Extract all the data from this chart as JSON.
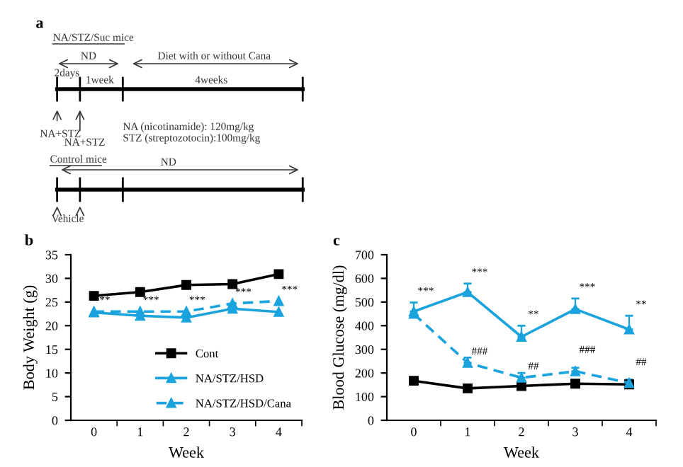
{
  "chart_data": [
    {
      "type": "other",
      "title": "a",
      "annotations": [
        "NA/STZ/Suc mice",
        "ND",
        "Diet with or without Cana",
        "2days",
        "1week",
        "4weeks",
        "NA+STZ",
        "NA+STZ",
        "NA (nicotinamide): 120mg/kg",
        "STZ (streptozotocin):100mg/kg",
        "Control mice",
        "ND",
        "Vehicle"
      ]
    },
    {
      "type": "line",
      "title": "b",
      "xlabel": "Week",
      "ylabel": "Body Weight (g)",
      "categories": [
        "0",
        "1",
        "2",
        "3",
        "4"
      ],
      "series": [
        {
          "name": "Cont",
          "color": "#000000",
          "marker": "square",
          "line_style": "solid",
          "values": [
            26.3,
            27.1,
            28.6,
            28.8,
            30.9
          ]
        },
        {
          "name": "NA/STZ/HSD",
          "color": "#1aa3dc",
          "marker": "triangle",
          "line_style": "solid",
          "values": [
            22.8,
            22.1,
            21.7,
            23.6,
            22.9
          ]
        },
        {
          "name": "NA/STZ/HSD/Cana",
          "color": "#1aa3dc",
          "marker": "triangle",
          "line_style": "dashed",
          "values": [
            23.0,
            23.0,
            23.0,
            24.7,
            25.2
          ]
        }
      ],
      "ylim": [
        0,
        35
      ],
      "yticks": [
        0,
        5,
        10,
        15,
        20,
        25,
        30,
        35
      ],
      "grid": false,
      "legend": "bottom right",
      "annotations": [
        {
          "text": "**",
          "x": "0",
          "y": 23.0
        },
        {
          "text": "***",
          "x": "1",
          "y": 23.0
        },
        {
          "text": "***",
          "x": "2",
          "y": 23.0
        },
        {
          "text": "***",
          "x": "3",
          "y": 24.7
        },
        {
          "text": "***",
          "x": "4",
          "y": 25.2
        }
      ]
    },
    {
      "type": "line",
      "title": "c",
      "xlabel": "Week",
      "ylabel": "Blood Glucose (mg/dl)",
      "categories": [
        "0",
        "1",
        "2",
        "3",
        "4"
      ],
      "series": [
        {
          "color": "#000000",
          "marker": "square",
          "line_style": "solid",
          "values": [
            167,
            135,
            145,
            155,
            152
          ]
        },
        {
          "color": "#1aa3dc",
          "marker": "triangle",
          "line_style": "solid",
          "values": [
            460,
            542,
            353,
            470,
            384
          ],
          "errors": [
            [
              460,
              498
            ],
            [
              542,
              578
            ],
            [
              353,
              400
            ],
            [
              470,
              515
            ],
            [
              384,
              442
            ]
          ]
        },
        {
          "color": "#1aa3dc",
          "marker": "triangle",
          "line_style": "dashed",
          "values": [
            450,
            243,
            180,
            207,
            158
          ],
          "errors": [
            null,
            [
              243,
              265
            ],
            [
              180,
              200
            ],
            [
              207,
              222
            ],
            [
              158,
              172
            ]
          ]
        }
      ],
      "ylim": [
        0,
        700
      ],
      "yticks": [
        0,
        100,
        200,
        300,
        400,
        500,
        600,
        700
      ],
      "grid": false,
      "annotations": [
        {
          "text": "***",
          "x": "0",
          "y": 498
        },
        {
          "text": "***",
          "x": "1",
          "y": 578
        },
        {
          "text": "**",
          "x": "2",
          "y": 400
        },
        {
          "text": "***",
          "x": "3",
          "y": 515
        },
        {
          "text": "**",
          "x": "4",
          "y": 442
        },
        {
          "text": "###",
          "x": "1",
          "y": 243
        },
        {
          "text": "##",
          "x": "2",
          "y": 180
        },
        {
          "text": "###",
          "x": "3",
          "y": 250
        },
        {
          "text": "##",
          "x": "4",
          "y": 198
        }
      ]
    }
  ]
}
